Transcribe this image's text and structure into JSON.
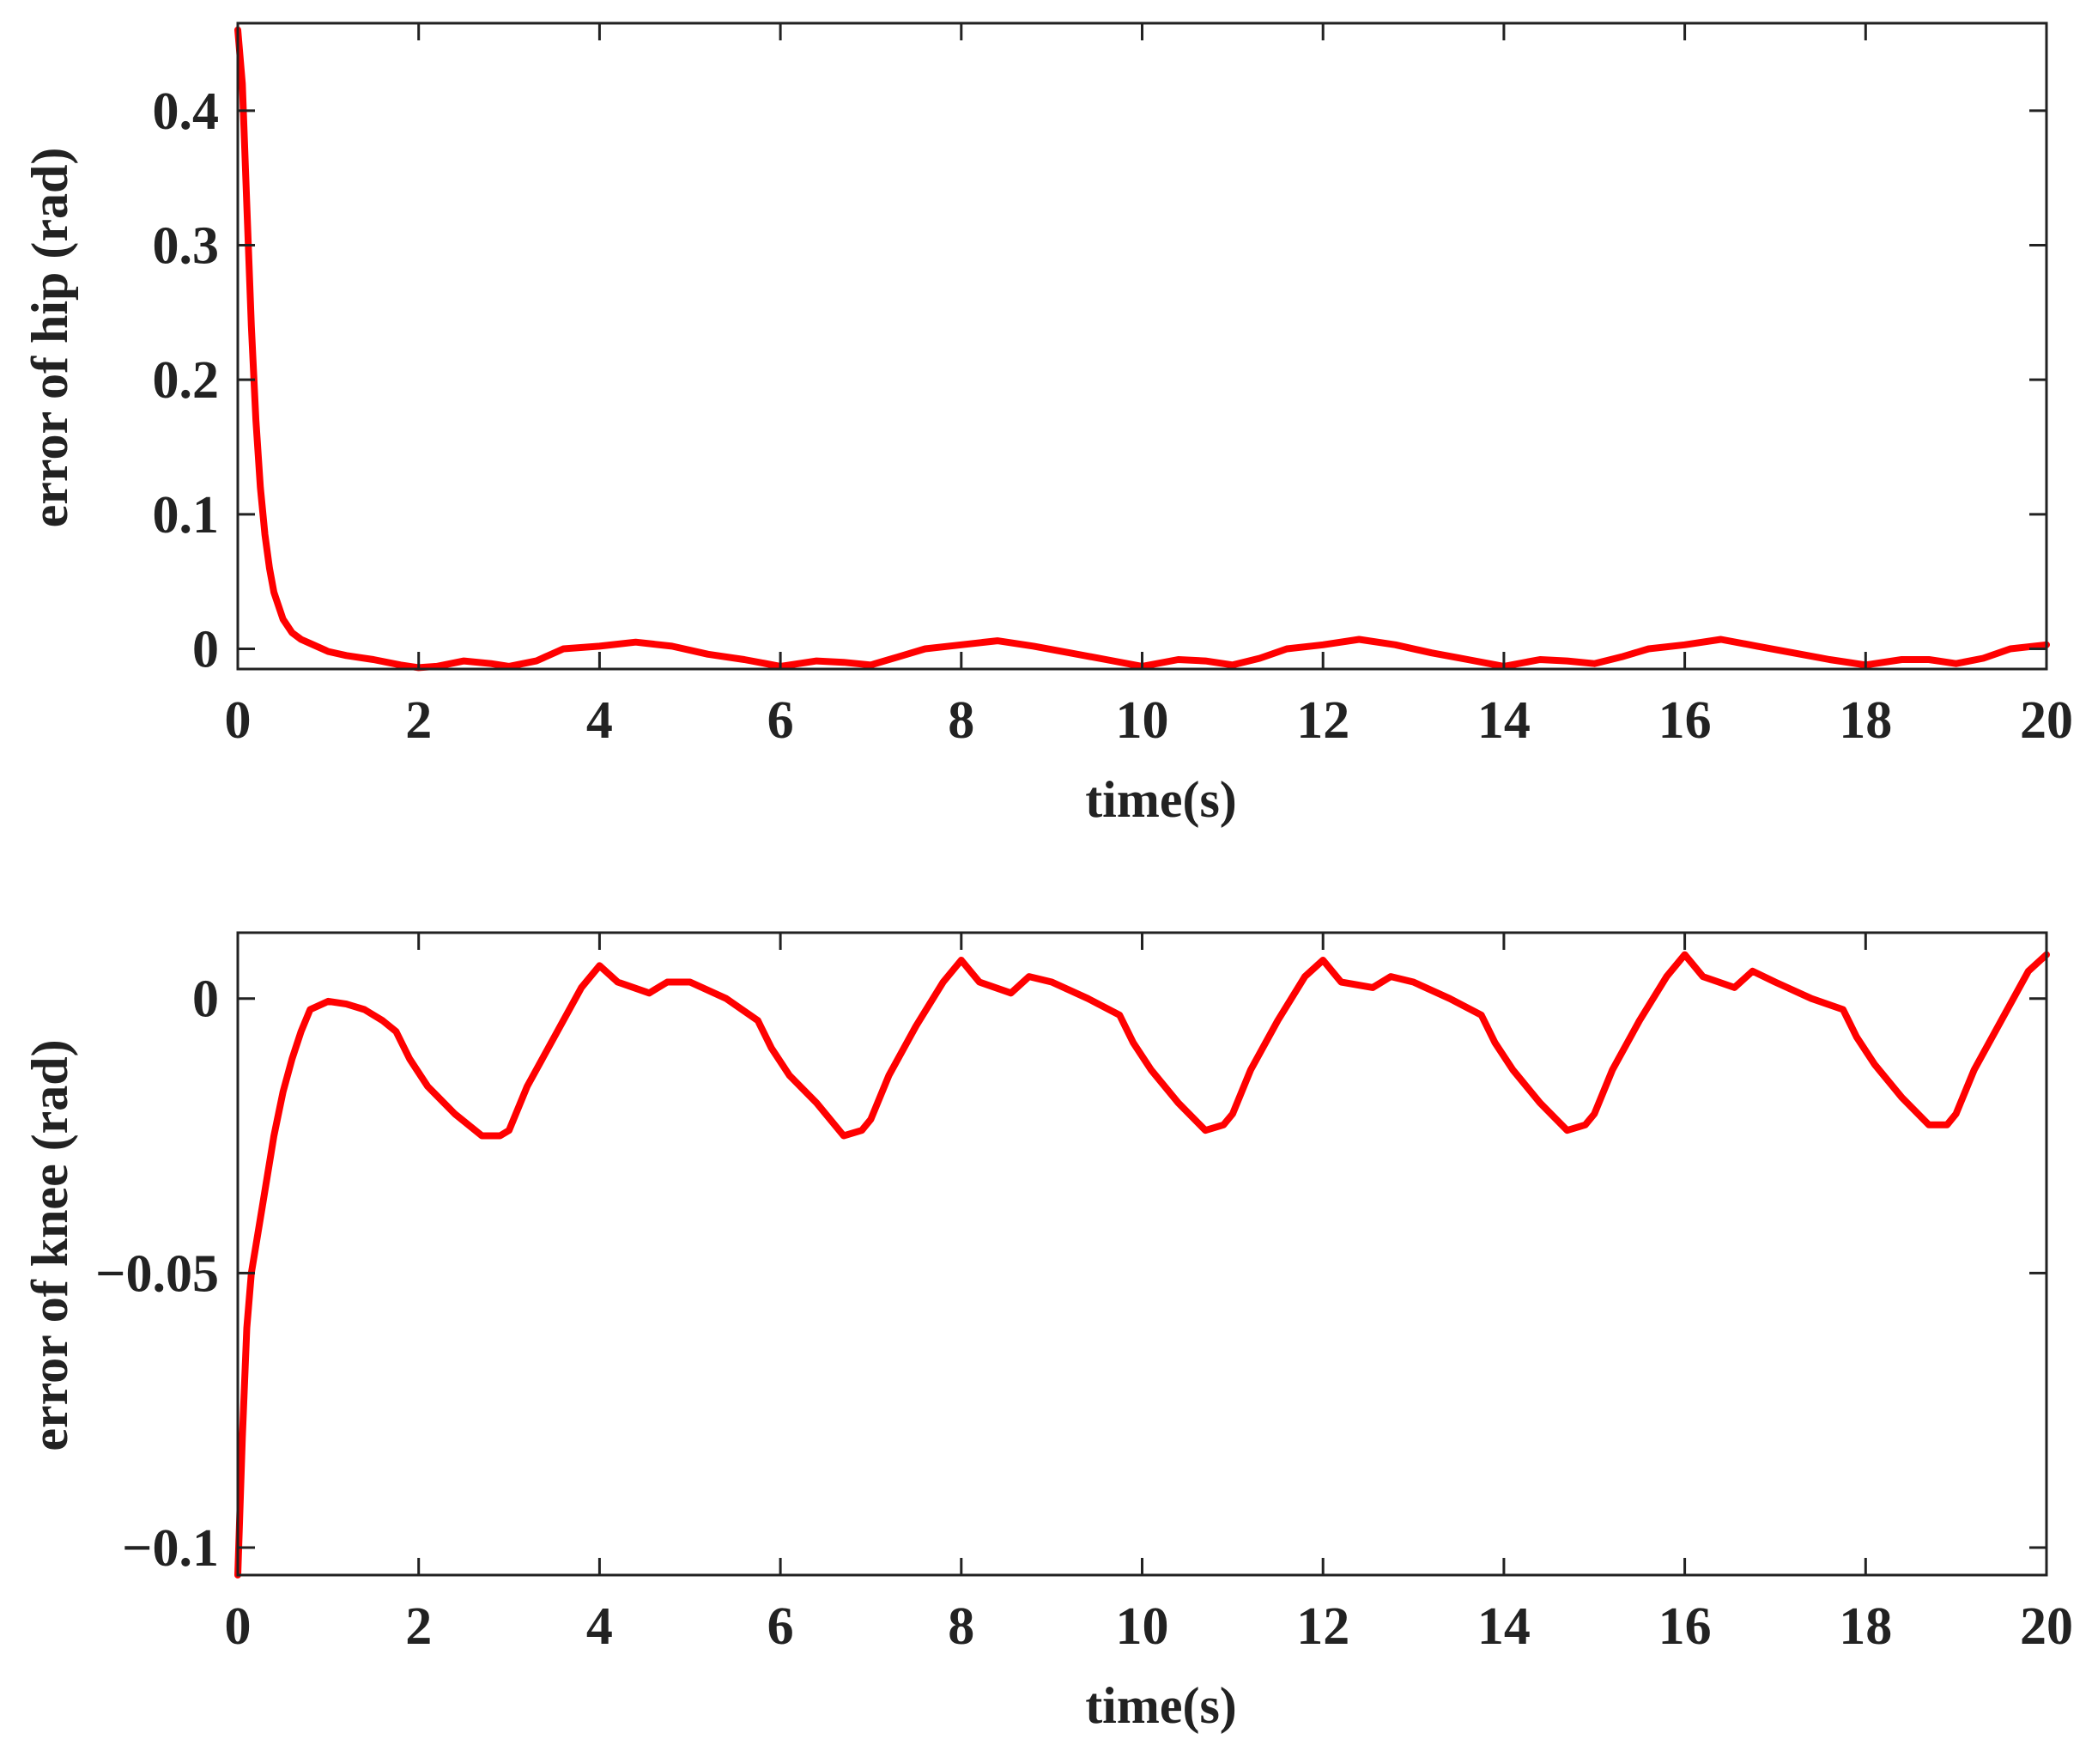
{
  "colors": {
    "line": "#ff0000",
    "axis": "#222222",
    "background": "#ffffff"
  },
  "chart_data": [
    {
      "type": "line",
      "title": "",
      "xlabel": "time(s)",
      "ylabel": "error of hip (rad)",
      "xlim": [
        0,
        20
      ],
      "ylim": [
        -0.015,
        0.465
      ],
      "xticks": [
        0,
        2,
        4,
        6,
        8,
        10,
        12,
        14,
        16,
        18,
        20
      ],
      "xtick_labels": [
        "0",
        "2",
        "4",
        "6",
        "8",
        "10",
        "12",
        "14",
        "16",
        "18",
        "20"
      ],
      "yticks": [
        0,
        0.1,
        0.2,
        0.3,
        0.4
      ],
      "ytick_labels": [
        "0",
        "0.1",
        "0.2",
        "0.3",
        "0.4"
      ],
      "grid": false,
      "legend": "none",
      "series": [
        {
          "color": "#ff0000",
          "x": [
            0,
            0.05,
            0.1,
            0.15,
            0.2,
            0.25,
            0.3,
            0.35,
            0.4,
            0.5,
            0.6,
            0.7,
            0.8,
            1.0,
            1.2,
            1.5,
            1.8,
            2.0,
            2.2,
            2.5,
            2.8,
            3.0,
            3.3,
            3.6,
            4.0,
            4.4,
            4.8,
            5.2,
            5.6,
            6.0,
            6.4,
            6.7,
            7.0,
            7.3,
            7.6,
            8.0,
            8.4,
            8.8,
            9.2,
            9.6,
            10.0,
            10.4,
            10.7,
            11.0,
            11.3,
            11.6,
            12.0,
            12.4,
            12.8,
            13.2,
            13.6,
            14.0,
            14.4,
            14.7,
            15.0,
            15.3,
            15.6,
            16.0,
            16.4,
            16.8,
            17.2,
            17.6,
            18.0,
            18.4,
            18.7,
            19.0,
            19.3,
            19.6,
            20.0
          ],
          "y": [
            0.46,
            0.42,
            0.33,
            0.24,
            0.17,
            0.12,
            0.085,
            0.06,
            0.042,
            0.022,
            0.012,
            0.007,
            0.004,
            -0.002,
            -0.005,
            -0.008,
            -0.012,
            -0.014,
            -0.013,
            -0.009,
            -0.011,
            -0.013,
            -0.009,
            0.0,
            0.002,
            0.005,
            0.002,
            -0.004,
            -0.008,
            -0.013,
            -0.009,
            -0.01,
            -0.012,
            -0.006,
            0.0,
            0.003,
            0.006,
            0.002,
            -0.003,
            -0.008,
            -0.013,
            -0.008,
            -0.009,
            -0.012,
            -0.007,
            0.0,
            0.003,
            0.007,
            0.003,
            -0.003,
            -0.008,
            -0.013,
            -0.008,
            -0.009,
            -0.011,
            -0.006,
            0.0,
            0.003,
            0.007,
            0.002,
            -0.003,
            -0.008,
            -0.012,
            -0.008,
            -0.008,
            -0.011,
            -0.007,
            0.0,
            0.003
          ]
        }
      ]
    },
    {
      "type": "line",
      "title": "",
      "xlabel": "time(s)",
      "ylabel": "error of knee (rad)",
      "xlim": [
        0,
        20
      ],
      "ylim": [
        -0.105,
        0.012
      ],
      "xticks": [
        0,
        2,
        4,
        6,
        8,
        10,
        12,
        14,
        16,
        18,
        20
      ],
      "xtick_labels": [
        "0",
        "2",
        "4",
        "6",
        "8",
        "10",
        "12",
        "14",
        "16",
        "18",
        "20"
      ],
      "yticks": [
        -0.1,
        -0.05,
        0
      ],
      "ytick_labels": [
        "−0.1",
        "−0.05",
        "0"
      ],
      "grid": false,
      "legend": "none",
      "series": [
        {
          "color": "#ff0000",
          "x": [
            0,
            0.05,
            0.1,
            0.15,
            0.2,
            0.3,
            0.4,
            0.5,
            0.6,
            0.7,
            0.8,
            1.0,
            1.2,
            1.4,
            1.6,
            1.75,
            1.9,
            2.1,
            2.4,
            2.7,
            2.9,
            3.0,
            3.2,
            3.5,
            3.8,
            4.0,
            4.2,
            4.55,
            4.75,
            5.0,
            5.4,
            5.75,
            5.9,
            6.1,
            6.4,
            6.7,
            6.9,
            7.0,
            7.2,
            7.5,
            7.8,
            8.0,
            8.2,
            8.55,
            8.75,
            9.0,
            9.4,
            9.75,
            9.9,
            10.1,
            10.4,
            10.7,
            10.9,
            11.0,
            11.2,
            11.5,
            11.8,
            12.0,
            12.2,
            12.55,
            12.75,
            13.0,
            13.4,
            13.75,
            13.9,
            14.1,
            14.4,
            14.7,
            14.9,
            15.0,
            15.2,
            15.5,
            15.8,
            16.0,
            16.2,
            16.55,
            16.75,
            17.0,
            17.4,
            17.75,
            17.9,
            18.1,
            18.4,
            18.7,
            18.9,
            19.0,
            19.2,
            19.5,
            19.8,
            20.0
          ],
          "y": [
            -0.105,
            -0.08,
            -0.06,
            -0.05,
            -0.045,
            -0.035,
            -0.025,
            -0.017,
            -0.011,
            -0.006,
            -0.002,
            -0.0005,
            -0.001,
            -0.002,
            -0.004,
            -0.006,
            -0.011,
            -0.016,
            -0.021,
            -0.025,
            -0.025,
            -0.024,
            -0.016,
            -0.007,
            0.002,
            0.006,
            0.003,
            0.001,
            0.003,
            0.003,
            0.0,
            -0.004,
            -0.009,
            -0.014,
            -0.019,
            -0.025,
            -0.024,
            -0.022,
            -0.014,
            -0.005,
            0.003,
            0.007,
            0.003,
            0.001,
            0.004,
            0.003,
            0.0,
            -0.003,
            -0.008,
            -0.013,
            -0.019,
            -0.024,
            -0.023,
            -0.021,
            -0.013,
            -0.004,
            0.004,
            0.007,
            0.003,
            0.002,
            0.004,
            0.003,
            0.0,
            -0.003,
            -0.008,
            -0.013,
            -0.019,
            -0.024,
            -0.023,
            -0.021,
            -0.013,
            -0.004,
            0.004,
            0.008,
            0.004,
            0.002,
            0.005,
            0.003,
            0.0,
            -0.002,
            -0.007,
            -0.012,
            -0.018,
            -0.023,
            -0.023,
            -0.021,
            -0.013,
            -0.004,
            0.005,
            0.008
          ]
        }
      ]
    }
  ]
}
